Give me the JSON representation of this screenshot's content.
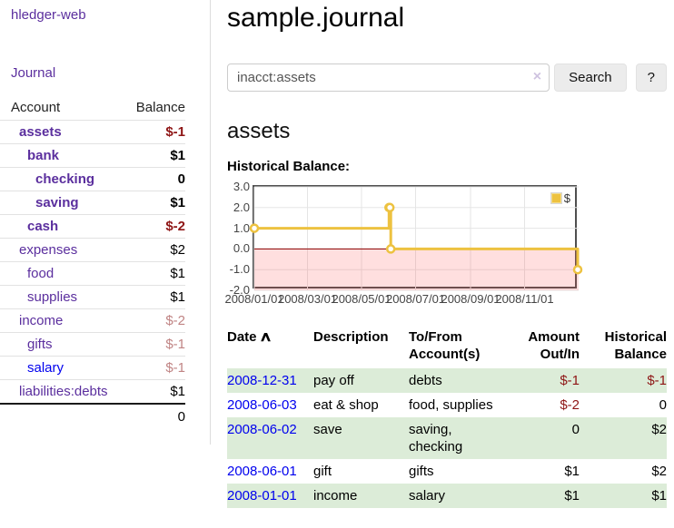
{
  "app": {
    "brand": "hledger-web",
    "nav_journal": "Journal"
  },
  "colors": {
    "link_purple": "#5b2f9e",
    "link_blue": "#0000ee",
    "negative_strong": "#8e1515",
    "negative_faded": "#c08484",
    "row_shade_green": "#dcecd8"
  },
  "sidebar": {
    "header": {
      "account": "Account",
      "balance": "Balance"
    },
    "accounts": [
      {
        "name": "assets",
        "indent": 0,
        "balance": "$-1",
        "bold": true,
        "neg": "strong"
      },
      {
        "name": "bank",
        "indent": 1,
        "balance": "$1",
        "bold": true,
        "neg": null
      },
      {
        "name": "checking",
        "indent": 2,
        "balance": "0",
        "bold": true,
        "neg": null
      },
      {
        "name": "saving",
        "indent": 2,
        "balance": "$1",
        "bold": true,
        "neg": null
      },
      {
        "name": "cash",
        "indent": 1,
        "balance": "$-2",
        "bold": true,
        "neg": "strong"
      },
      {
        "name": "expenses",
        "indent": 0,
        "balance": "$2",
        "bold": false,
        "neg": null
      },
      {
        "name": "food",
        "indent": 1,
        "balance": "$1",
        "bold": false,
        "neg": null
      },
      {
        "name": "supplies",
        "indent": 1,
        "balance": "$1",
        "bold": false,
        "neg": null
      },
      {
        "name": "income",
        "indent": 0,
        "balance": "$-2",
        "bold": false,
        "neg": "faded"
      },
      {
        "name": "gifts",
        "indent": 1,
        "balance": "$-1",
        "bold": false,
        "neg": "faded"
      },
      {
        "name": "salary",
        "indent": 1,
        "balance": "$-1",
        "bold": false,
        "neg": "faded",
        "blue": true
      },
      {
        "name": "liabilities:debts",
        "indent": 0,
        "balance": "$1",
        "bold": false,
        "neg": null
      }
    ],
    "total": "0"
  },
  "header": {
    "title": "sample.journal"
  },
  "search": {
    "value": "inacct:assets",
    "clear_icon": "×",
    "button_label": "Search",
    "help_label": "?"
  },
  "account_page": {
    "heading": "assets",
    "chart_label": "Historical Balance:"
  },
  "chart_data": {
    "type": "line",
    "title": "Historical Balance:",
    "step": true,
    "series": [
      {
        "name": "$",
        "points": [
          [
            "2008-01-01",
            1
          ],
          [
            "2008-06-01",
            2
          ],
          [
            "2008-06-02",
            2
          ],
          [
            "2008-06-03",
            0
          ],
          [
            "2008-12-31",
            -1
          ]
        ]
      }
    ],
    "x_range": [
      "2008-01-01",
      "2009-01-01"
    ],
    "ylim": [
      -2,
      3
    ],
    "y_ticks": [
      {
        "value": 3,
        "label": "3.0"
      },
      {
        "value": 2,
        "label": "2.0"
      },
      {
        "value": 1,
        "label": "1.0"
      },
      {
        "value": 0,
        "label": "0.0"
      },
      {
        "value": -1,
        "label": "-1.0"
      },
      {
        "value": -2,
        "label": "-2.0"
      }
    ],
    "x_ticks": [
      {
        "date": "2008-01-01",
        "label": "2008/01/01"
      },
      {
        "date": "2008-03-01",
        "label": "2008/03/01"
      },
      {
        "date": "2008-05-01",
        "label": "2008/05/01"
      },
      {
        "date": "2008-07-01",
        "label": "2008/07/01"
      },
      {
        "date": "2008-09-01",
        "label": "2008/09/01"
      },
      {
        "date": "2008-11-01",
        "label": "2008/11/01"
      }
    ],
    "legend": {
      "label": "$",
      "position": "top-right"
    },
    "grid": true,
    "colors": {
      "line": "#edc240",
      "marker_fill": "#ffffff",
      "zero_line": "#8b0000",
      "grid": "#e5e5e5",
      "border": "#4f4f4f",
      "negative_fill": "#ff5050"
    }
  },
  "register": {
    "headers": {
      "date": "Date",
      "sort_icon": "∧",
      "description": "Description",
      "accounts": "To/From Account(s)",
      "amount": "Amount Out/In",
      "balance": "Historical Balance"
    },
    "rows": [
      {
        "date": "2008-12-31",
        "description": "pay off",
        "accounts": "debts",
        "amount": "$-1",
        "balance": "$-1",
        "shaded": true
      },
      {
        "date": "2008-06-03",
        "description": "eat & shop",
        "accounts": "food, supplies",
        "amount": "$-2",
        "balance": "0",
        "shaded": false
      },
      {
        "date": "2008-06-02",
        "description": "save",
        "accounts": "saving, checking",
        "amount": "0",
        "balance": "$2",
        "shaded": true
      },
      {
        "date": "2008-06-01",
        "description": "gift",
        "accounts": "gifts",
        "amount": "$1",
        "balance": "$2",
        "shaded": false
      },
      {
        "date": "2008-01-01",
        "description": "income",
        "accounts": "salary",
        "amount": "$1",
        "balance": "$1",
        "shaded": true
      }
    ]
  }
}
